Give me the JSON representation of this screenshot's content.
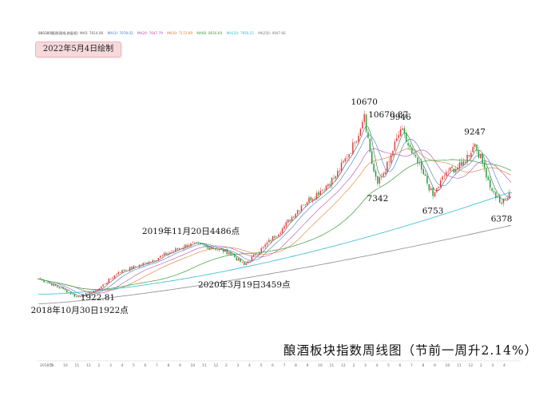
{
  "date_badge": "2022年5月4日绘制",
  "footer_title": "酿酒板块指数周线图（节前一周升2.14%）",
  "legend": {
    "code": "880380",
    "name": "酿酒(周线,前复权)",
    "items": [
      {
        "label": "MA5: 7014.00",
        "color": "#555555"
      },
      {
        "label": "MA10: 7078.02",
        "color": "#3d7cc9"
      },
      {
        "label": "MA20: 7647.79",
        "color": "#b44bb0"
      },
      {
        "label": "MA30: 7172.69",
        "color": "#e07a2a"
      },
      {
        "label": "MA60: 8016.60",
        "color": "#3a9b3a"
      },
      {
        "label": "MA120: 7950.21",
        "color": "#33b9d6"
      },
      {
        "label": "MA250: 4947.66",
        "color": "#777777"
      }
    ]
  },
  "chart_data": {
    "type": "candlestick",
    "ylim": [
      1500,
      11200
    ],
    "up_color": "#e23b3b",
    "down_color": "#1f9c3a",
    "anchors": [
      {
        "t": 0,
        "v": 2800
      },
      {
        "t": 14,
        "v": 2250
      },
      {
        "t": 20,
        "v": 1922
      },
      {
        "t": 30,
        "v": 2200
      },
      {
        "t": 42,
        "v": 3100
      },
      {
        "t": 58,
        "v": 3600
      },
      {
        "t": 70,
        "v": 4100
      },
      {
        "t": 80,
        "v": 4486
      },
      {
        "t": 90,
        "v": 4300
      },
      {
        "t": 100,
        "v": 4050
      },
      {
        "t": 108,
        "v": 3459
      },
      {
        "t": 118,
        "v": 4300
      },
      {
        "t": 128,
        "v": 5200
      },
      {
        "t": 138,
        "v": 6300
      },
      {
        "t": 148,
        "v": 7000
      },
      {
        "t": 156,
        "v": 7700
      },
      {
        "t": 166,
        "v": 9300
      },
      {
        "t": 171,
        "v": 10670
      },
      {
        "t": 175,
        "v": 8300
      },
      {
        "t": 178,
        "v": 7342
      },
      {
        "t": 184,
        "v": 8400
      },
      {
        "t": 190,
        "v": 9946
      },
      {
        "t": 196,
        "v": 8800
      },
      {
        "t": 202,
        "v": 7800
      },
      {
        "t": 207,
        "v": 6753
      },
      {
        "t": 214,
        "v": 7900
      },
      {
        "t": 222,
        "v": 8200
      },
      {
        "t": 229,
        "v": 9247
      },
      {
        "t": 234,
        "v": 8100
      },
      {
        "t": 238,
        "v": 7000
      },
      {
        "t": 243,
        "v": 6378
      },
      {
        "t": 248,
        "v": 6900
      }
    ],
    "annotations": [
      {
        "text": "10670",
        "t": 171,
        "v": 10670,
        "pos": "above"
      },
      {
        "text": "10670.87",
        "t": 171,
        "v": 10670,
        "pos": "small-right"
      },
      {
        "text": "9946",
        "t": 190,
        "v": 9946,
        "pos": "above"
      },
      {
        "text": "9247",
        "t": 229,
        "v": 9247,
        "pos": "above"
      },
      {
        "text": "7342",
        "t": 178,
        "v": 7342,
        "pos": "below"
      },
      {
        "text": "6753",
        "t": 207,
        "v": 6753,
        "pos": "below"
      },
      {
        "text": "6378",
        "t": 243,
        "v": 6378,
        "pos": "below"
      },
      {
        "text": "2019年11月20日4486点",
        "t": 80,
        "v": 4486,
        "pos": "above-wide"
      },
      {
        "text": "2020年3月19日3459点",
        "t": 108,
        "v": 3459,
        "pos": "below-wide"
      },
      {
        "text": "2018年10月30日1922点",
        "t": 20,
        "v": 1922,
        "pos": "below-left"
      },
      {
        "text": "1922.81",
        "t": 20,
        "v": 1922,
        "pos": "small-right"
      }
    ],
    "x_ticks": [
      "2018年",
      "9",
      "10",
      "11",
      "12",
      "2",
      "3",
      "4",
      "5",
      "6",
      "7",
      "8",
      "9",
      "10",
      "11",
      "12",
      "2",
      "3",
      "4",
      "5",
      "6",
      "7",
      "8",
      "9",
      "10",
      "11",
      "12",
      "2",
      "3",
      "4",
      "5",
      "6",
      "7",
      "8",
      "9",
      "10",
      "11",
      "12",
      "2",
      "3",
      "4"
    ]
  }
}
